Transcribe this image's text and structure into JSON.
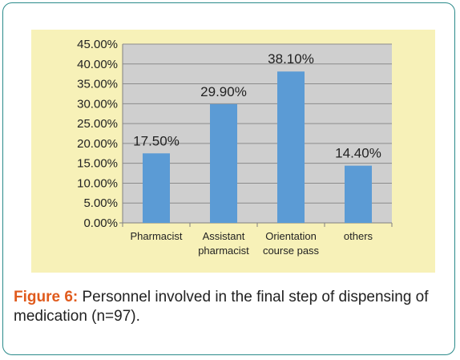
{
  "caption": {
    "label": "Figure 6:",
    "text": " Personnel involved in the final step of dispensing of medication (n=97)."
  },
  "colors": {
    "bar": "#5b9bd5",
    "panel_background": "#f7f1b8",
    "plot_background": "#cfcfcf",
    "caption_label": "#e05a1c",
    "frame_border": "#2a8a8a"
  },
  "chart_data": {
    "type": "bar",
    "categories": [
      [
        "Pharmacist"
      ],
      [
        "Assistant",
        "pharmacist"
      ],
      [
        "Orientation",
        "course pass"
      ],
      [
        "others"
      ]
    ],
    "values": [
      17.5,
      29.9,
      38.1,
      14.4
    ],
    "data_labels": [
      "17.50%",
      "29.90%",
      "38.10%",
      "14.40%"
    ],
    "y_ticks": [
      "0.00%",
      "5.00%",
      "10.00%",
      "15.00%",
      "20.00%",
      "25.00%",
      "30.00%",
      "35.00%",
      "40.00%",
      "45.00%"
    ],
    "ylim": [
      0,
      45
    ],
    "grid": true,
    "legend": "none"
  }
}
